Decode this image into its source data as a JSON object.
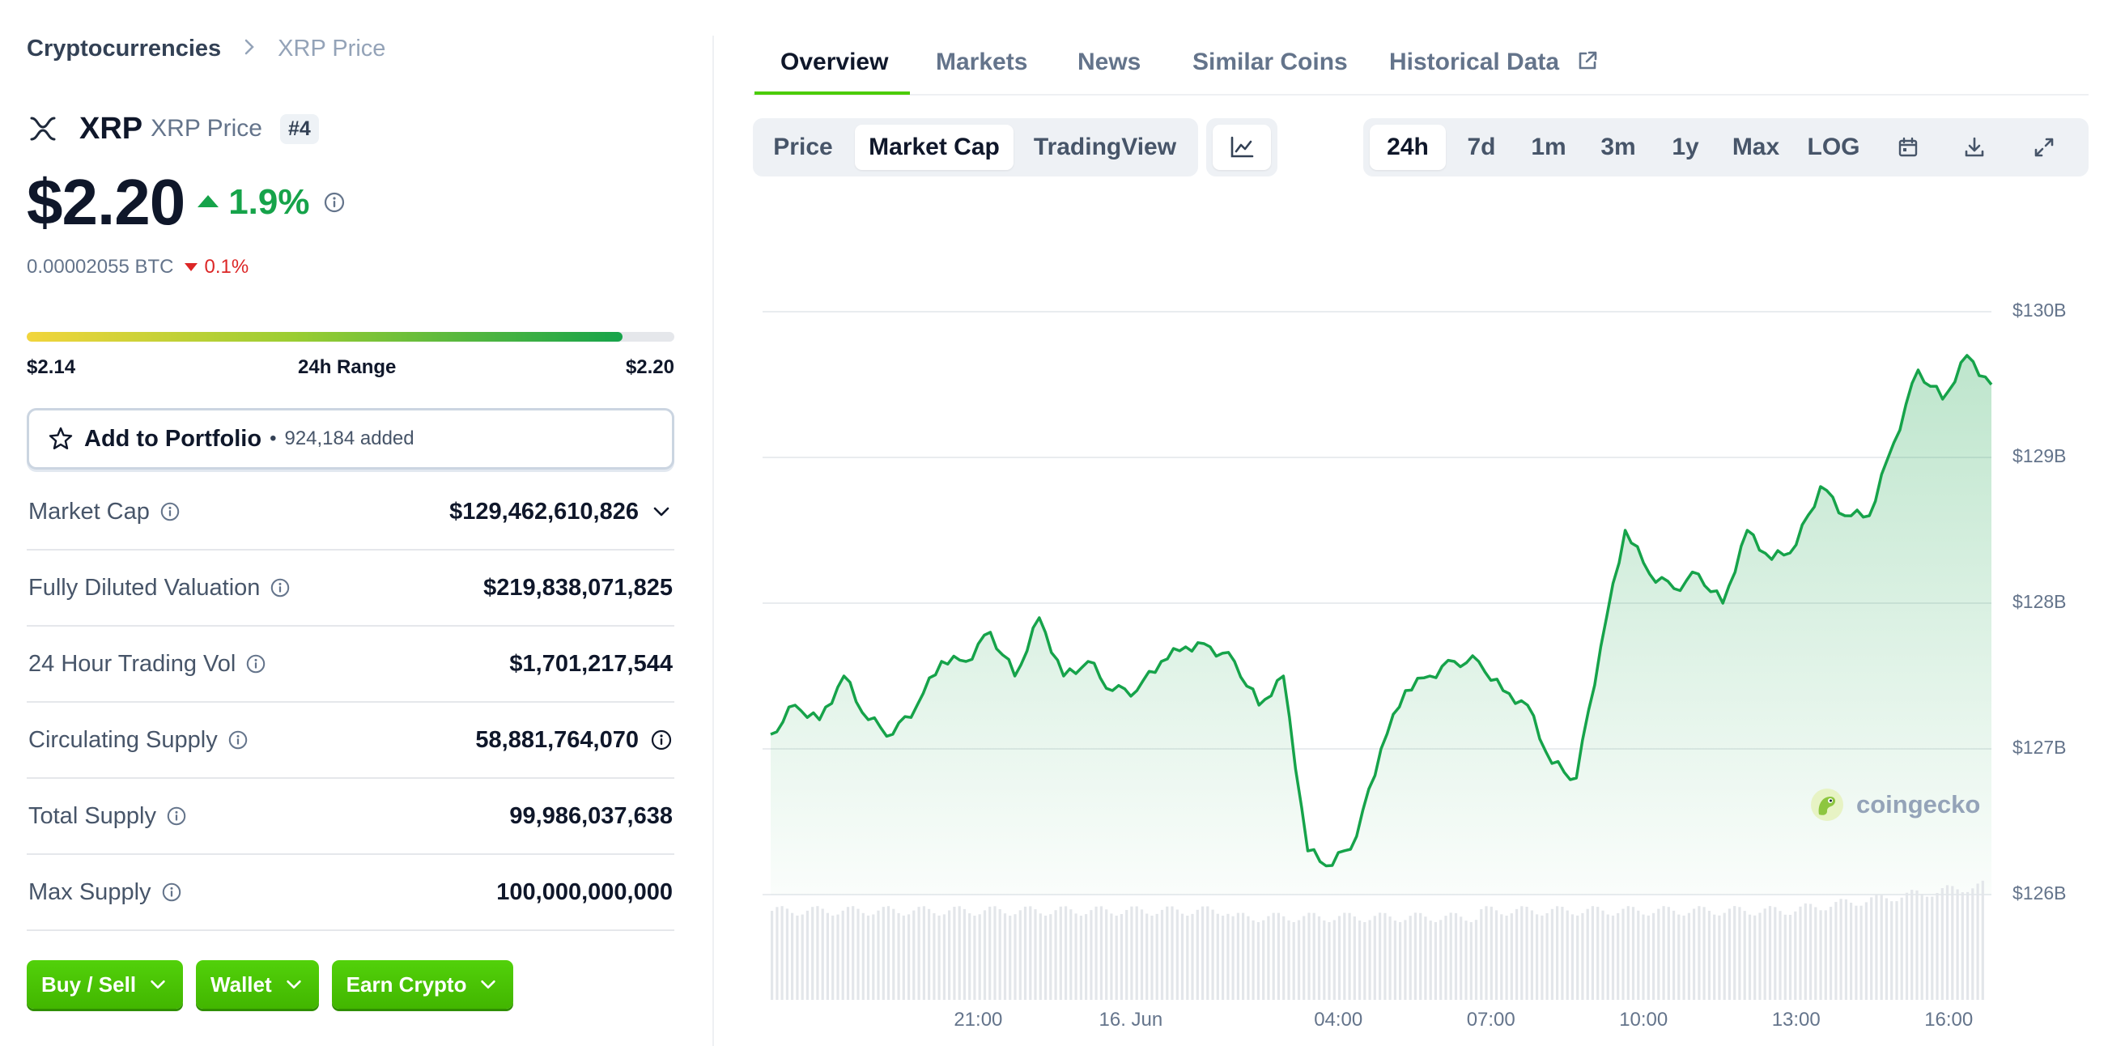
{
  "breadcrumb": {
    "root": "Cryptocurrencies",
    "current": "XRP Price"
  },
  "coin": {
    "name": "XRP",
    "subtitle": "XRP Price",
    "rank": "#4",
    "logo_icon": "xrp-logo-icon"
  },
  "price": {
    "value": "$2.20",
    "change": "1.9%",
    "change_direction": "up"
  },
  "btc": {
    "value": "0.00002055 BTC",
    "change": "0.1%",
    "change_direction": "down"
  },
  "range": {
    "low": "$2.14",
    "label": "24h Range",
    "high": "$2.20",
    "position": 0.92
  },
  "portfolio": {
    "label": "Add to Portfolio",
    "separator": "•",
    "count": "924,184 added"
  },
  "stats": [
    {
      "label": "Market Cap",
      "value": "$129,462,610,826",
      "has_info": true,
      "suffix": "chevron"
    },
    {
      "label": "Fully Diluted Valuation",
      "value": "$219,838,071,825",
      "has_info": true,
      "suffix": ""
    },
    {
      "label": "24 Hour Trading Vol",
      "value": "$1,701,217,544",
      "has_info": true,
      "suffix": ""
    },
    {
      "label": "Circulating Supply",
      "value": "58,881,764,070",
      "has_info": true,
      "suffix": "info"
    },
    {
      "label": "Total Supply",
      "value": "99,986,037,638",
      "has_info": true,
      "suffix": ""
    },
    {
      "label": "Max Supply",
      "value": "100,000,000,000",
      "has_info": true,
      "suffix": ""
    }
  ],
  "actions": [
    {
      "label": "Buy / Sell"
    },
    {
      "label": "Wallet"
    },
    {
      "label": "Earn Crypto"
    }
  ],
  "tabs": [
    {
      "label": "Overview",
      "active": true
    },
    {
      "label": "Markets",
      "active": false
    },
    {
      "label": "News",
      "active": false
    },
    {
      "label": "Similar Coins",
      "active": false
    },
    {
      "label": "Historical Data",
      "active": false,
      "external": true
    }
  ],
  "chart_type_tabs": [
    {
      "label": "Price",
      "active": false
    },
    {
      "label": "Market Cap",
      "active": true
    },
    {
      "label": "TradingView",
      "active": false
    }
  ],
  "range_tabs": [
    {
      "label": "24h",
      "active": true
    },
    {
      "label": "7d",
      "active": false
    },
    {
      "label": "1m",
      "active": false
    },
    {
      "label": "3m",
      "active": false
    },
    {
      "label": "1y",
      "active": false
    },
    {
      "label": "Max",
      "active": false
    },
    {
      "label": "LOG",
      "active": false
    }
  ],
  "watermark": "coingecko",
  "colors": {
    "accent_green": "#4bcc00",
    "line_green": "#16a34a",
    "down_red": "#dc2626"
  },
  "chart_data": {
    "type": "area",
    "series_unit": "USD billions",
    "y_ticks": [
      "$130B",
      "$129B",
      "$128B",
      "$127B",
      "$126B"
    ],
    "x_ticks": [
      "21:00",
      "16. Jun",
      "04:00",
      "07:00",
      "10:00",
      "13:00",
      "16:00"
    ],
    "ylim": [
      126,
      130
    ],
    "x": [
      0,
      0.02,
      0.04,
      0.06,
      0.08,
      0.1,
      0.12,
      0.14,
      0.16,
      0.18,
      0.2,
      0.22,
      0.24,
      0.26,
      0.28,
      0.3,
      0.32,
      0.34,
      0.36,
      0.38,
      0.4,
      0.42,
      0.44,
      0.46,
      0.48,
      0.5,
      0.52,
      0.54,
      0.56,
      0.58,
      0.6,
      0.62,
      0.64,
      0.66,
      0.68,
      0.7,
      0.72,
      0.74,
      0.76,
      0.78,
      0.8,
      0.82,
      0.84,
      0.86,
      0.88,
      0.9,
      0.92,
      0.94,
      0.96,
      0.98,
      1.0
    ],
    "values": [
      127.1,
      127.3,
      127.2,
      127.5,
      127.2,
      127.1,
      127.3,
      127.6,
      127.6,
      127.8,
      127.5,
      127.9,
      127.5,
      127.6,
      127.4,
      127.4,
      127.6,
      127.7,
      127.7,
      127.6,
      127.3,
      127.5,
      126.3,
      126.2,
      126.4,
      127.0,
      127.4,
      127.5,
      127.6,
      127.6,
      127.4,
      127.3,
      126.9,
      126.8,
      127.7,
      128.5,
      128.2,
      128.1,
      128.2,
      128.0,
      128.5,
      128.3,
      128.4,
      128.8,
      128.6,
      128.6,
      129.1,
      129.6,
      129.4,
      129.7,
      129.5
    ]
  }
}
